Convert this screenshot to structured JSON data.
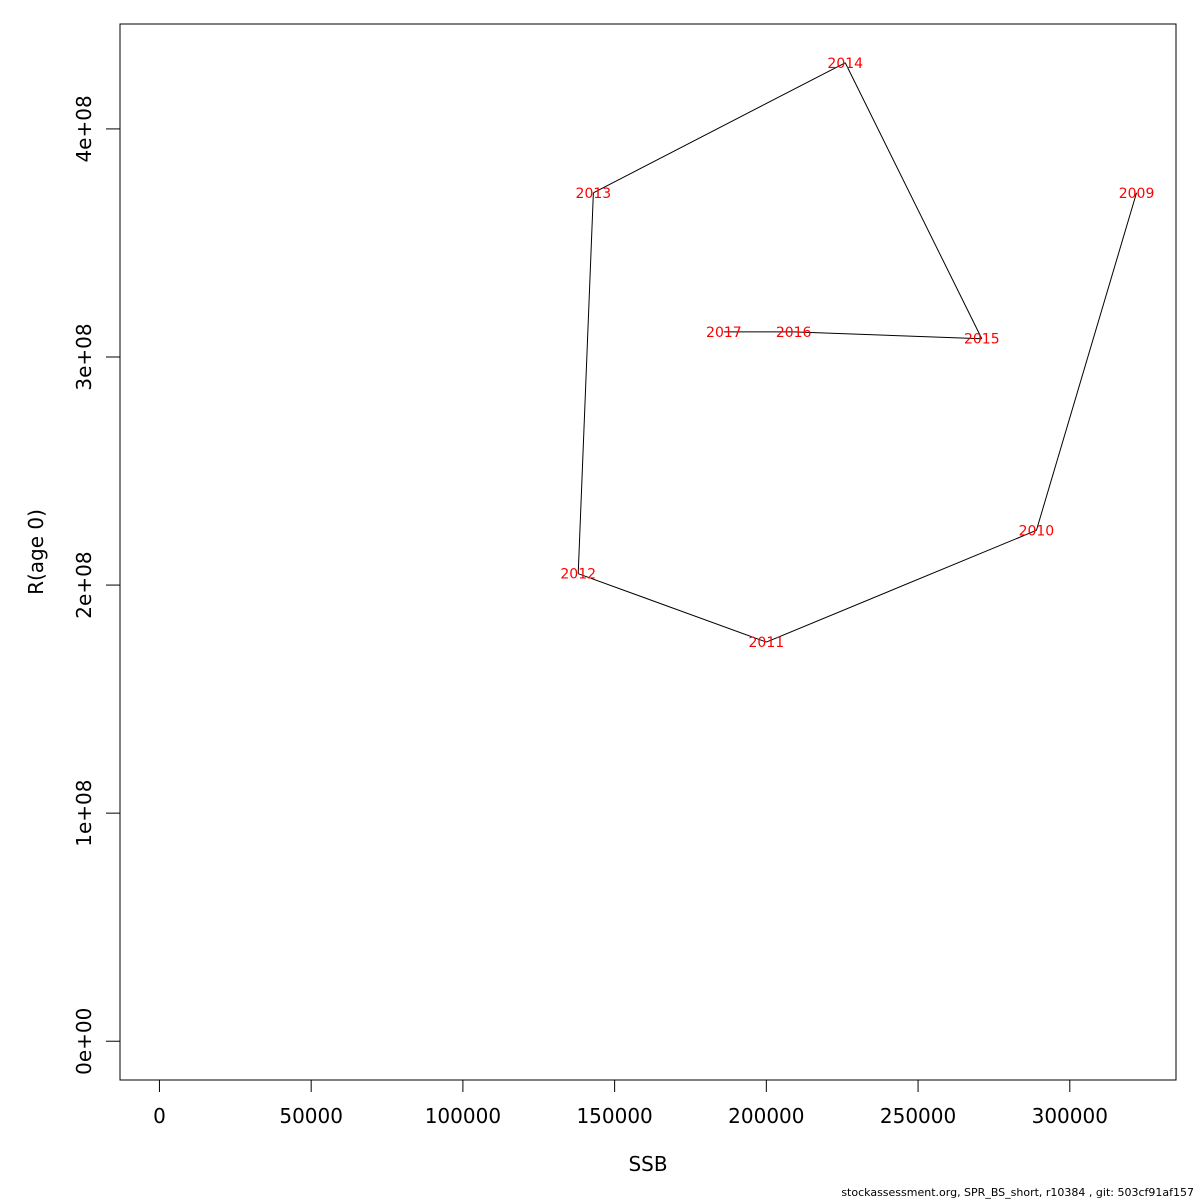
{
  "chart_data": {
    "type": "line",
    "title": "",
    "xlabel": "SSB",
    "ylabel": "R(age 0)",
    "xlim": [
      -13000,
      335000
    ],
    "ylim": [
      -17000000,
      446000000
    ],
    "xticks": [
      0,
      50000,
      100000,
      150000,
      200000,
      250000,
      300000
    ],
    "xtick_labels": [
      "0",
      "50000",
      "100000",
      "150000",
      "200000",
      "250000",
      "300000"
    ],
    "yticks": [
      0,
      100000000,
      200000000,
      300000000,
      400000000
    ],
    "ytick_labels": [
      "0e+00",
      "1e+08",
      "2e+08",
      "3e+08",
      "4e+08"
    ],
    "grid": false,
    "points": [
      {
        "label": "2009",
        "x": 322000,
        "y": 372000000
      },
      {
        "label": "2010",
        "x": 289000,
        "y": 224000000
      },
      {
        "label": "2011",
        "x": 200000,
        "y": 175000000
      },
      {
        "label": "2012",
        "x": 138000,
        "y": 205000000
      },
      {
        "label": "2013",
        "x": 143000,
        "y": 372000000
      },
      {
        "label": "2014",
        "x": 226000,
        "y": 429000000
      },
      {
        "label": "2015",
        "x": 271000,
        "y": 308000000
      },
      {
        "label": "2016",
        "x": 209000,
        "y": 311000000
      },
      {
        "label": "2017",
        "x": 186000,
        "y": 311000000
      }
    ],
    "line_color": "#000000",
    "label_color": "#ff0000"
  },
  "footer": "stockassessment.org, SPR_BS_short, r10384 , git: 503cf91af157"
}
